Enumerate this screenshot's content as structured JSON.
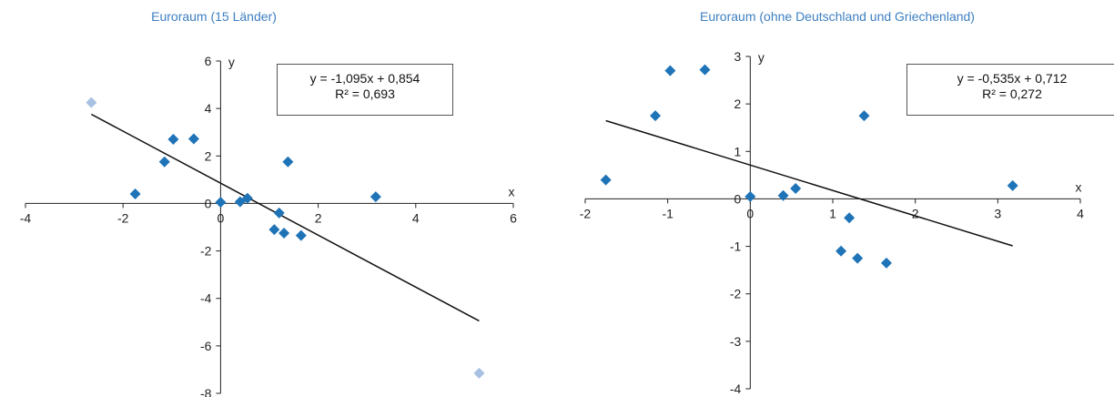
{
  "colors": {
    "title": "#3d7fc1",
    "point": "#1f73b7",
    "outlier": "#a8c0e2",
    "line": "#111111"
  },
  "chart_data": [
    {
      "type": "scatter",
      "title": "Euroraum (15 Länder)",
      "xlabel": "x",
      "ylabel": "y",
      "xlim": [
        -4,
        6
      ],
      "ylim": [
        -8,
        6
      ],
      "xticks": [
        "-4",
        "-2",
        "0",
        "2",
        "4",
        "6"
      ],
      "yticks": [
        "6",
        "4",
        "2",
        "0",
        "-2",
        "-4",
        "-6",
        "-8"
      ],
      "series": [
        {
          "values": [
            [
              -1.75,
              0.4
            ],
            [
              -1.15,
              1.75
            ],
            [
              -0.97,
              2.7
            ],
            [
              -0.55,
              2.72
            ],
            [
              0.0,
              0.05
            ],
            [
              0.4,
              0.07
            ],
            [
              0.55,
              0.22
            ],
            [
              1.1,
              -1.1
            ],
            [
              1.2,
              -0.4
            ],
            [
              1.3,
              -1.25
            ],
            [
              1.38,
              1.75
            ],
            [
              1.65,
              -1.35
            ],
            [
              3.18,
              0.28
            ]
          ]
        },
        {
          "values": [
            [
              -2.65,
              4.25
            ],
            [
              5.3,
              -7.15
            ]
          ]
        }
      ],
      "trendline": {
        "slope": -1.095,
        "intercept": 0.854,
        "x_range": [
          -2.65,
          5.3
        ]
      },
      "equation": "y = -1,095x + 0,854",
      "r2": "R² = 0,693"
    },
    {
      "type": "scatter",
      "title": "Euroraum (ohne Deutschland und Griechenland)",
      "xlabel": "x",
      "ylabel": "y",
      "xlim": [
        -2,
        4
      ],
      "ylim": [
        -4,
        3
      ],
      "xticks": [
        "-2",
        "-1",
        "0",
        "1",
        "2",
        "3",
        "4"
      ],
      "yticks": [
        "3",
        "2",
        "1",
        "0",
        "-1",
        "-2",
        "-3",
        "-4"
      ],
      "series": [
        {
          "values": [
            [
              -1.75,
              0.4
            ],
            [
              -1.15,
              1.75
            ],
            [
              -0.97,
              2.7
            ],
            [
              -0.55,
              2.72
            ],
            [
              0.0,
              0.05
            ],
            [
              0.4,
              0.07
            ],
            [
              0.55,
              0.22
            ],
            [
              1.1,
              -1.1
            ],
            [
              1.2,
              -0.4
            ],
            [
              1.3,
              -1.25
            ],
            [
              1.38,
              1.75
            ],
            [
              1.65,
              -1.35
            ],
            [
              3.18,
              0.28
            ]
          ]
        }
      ],
      "trendline": {
        "slope": -0.535,
        "intercept": 0.712,
        "x_range": [
          -1.75,
          3.18
        ]
      },
      "equation": "y = -0,535x + 0,712",
      "r2": "R² = 0,272"
    }
  ]
}
